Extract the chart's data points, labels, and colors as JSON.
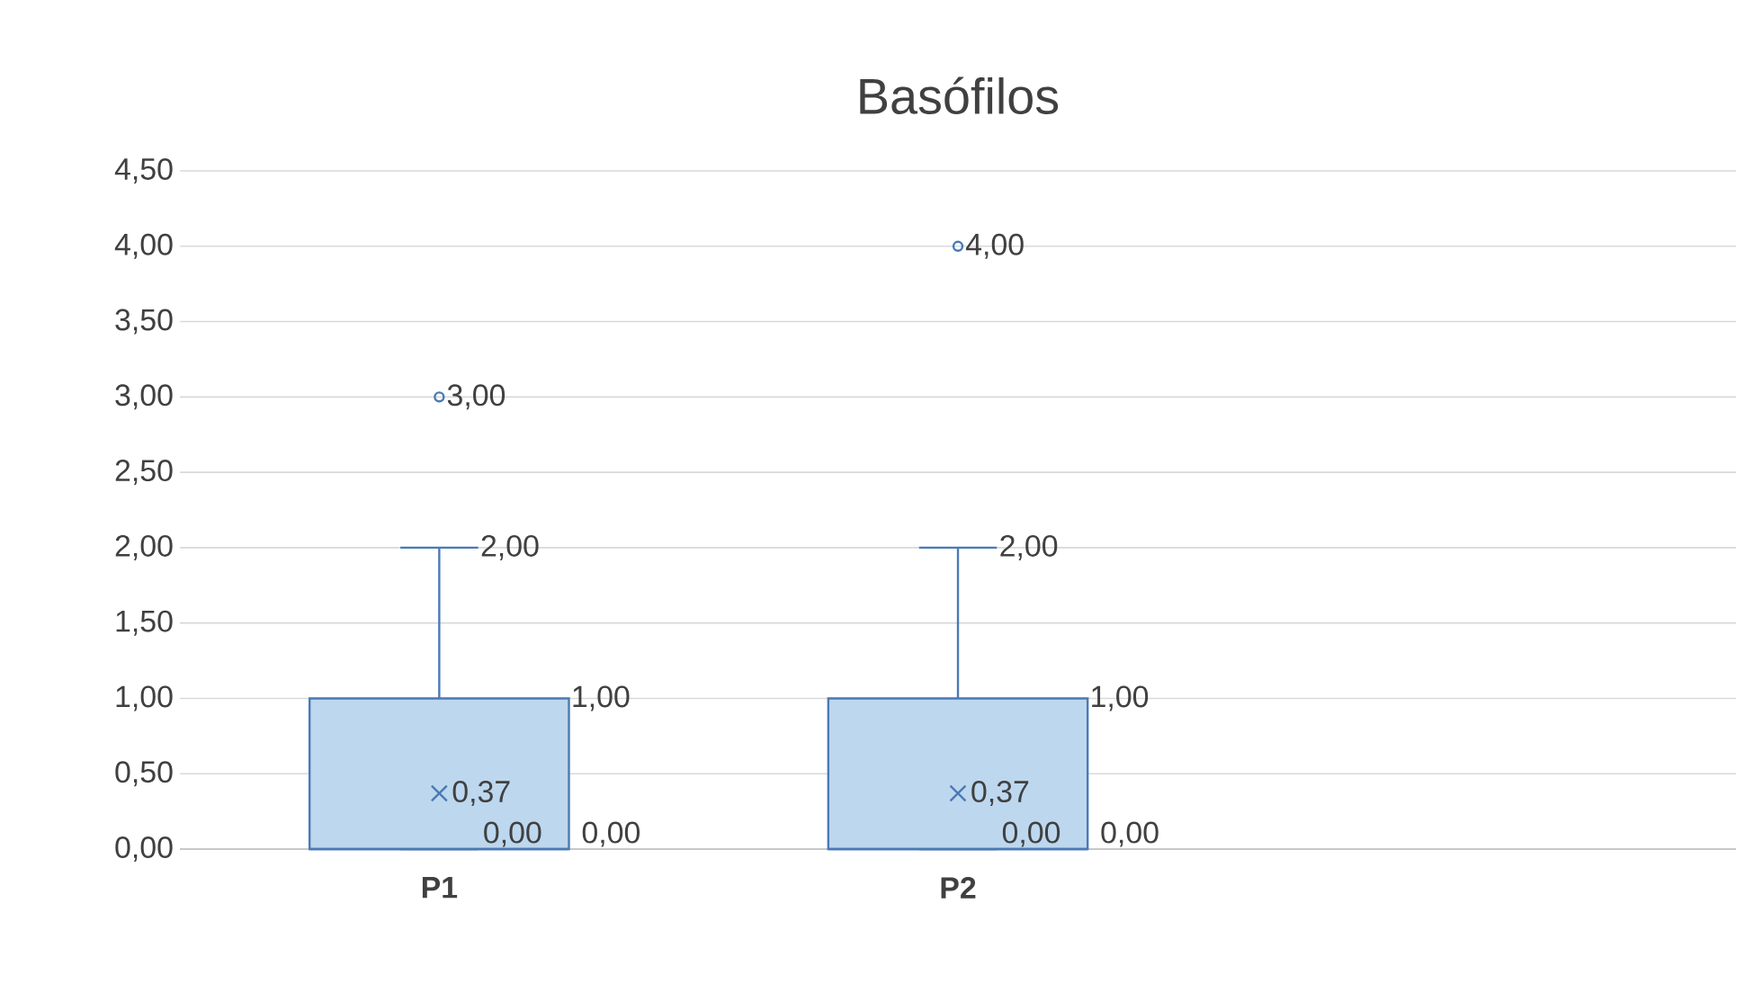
{
  "chart_data": {
    "type": "box",
    "title": "Basófilos",
    "categories": [
      "P1",
      "P2",
      null
    ],
    "boxes": [
      {
        "low": 0,
        "q1": 0,
        "median": 0,
        "q3": 1,
        "high": 2,
        "mean": 0.37,
        "outliers": [
          3
        ]
      },
      {
        "low": 0,
        "q1": 0,
        "median": 0,
        "q3": 1,
        "high": 2,
        "mean": 0.37,
        "outliers": [
          4
        ]
      },
      null
    ],
    "color": "#bdd7ee",
    "ylim": [
      0,
      4.5
    ],
    "yticks": [
      {
        "value": 0,
        "label": "0,00"
      },
      {
        "value": 0.5,
        "label": "0,50"
      },
      {
        "value": 1,
        "label": "1,00"
      },
      {
        "value": 1.5,
        "label": "1,50"
      },
      {
        "value": 2,
        "label": "2,00"
      },
      {
        "value": 2.5,
        "label": "2,50"
      },
      {
        "value": 3,
        "label": "3,00"
      },
      {
        "value": 3.5,
        "label": "3,50"
      },
      {
        "value": 4,
        "label": "4,00"
      },
      {
        "value": 4.5,
        "label": "4,50"
      }
    ],
    "grid": "y",
    "annotations": [
      "3,00",
      "2,00",
      "1,00",
      "0,37",
      "0,00",
      "0,00",
      "4,00",
      "2,00",
      "1,00",
      "0,37",
      "0,00",
      "0,00"
    ]
  }
}
